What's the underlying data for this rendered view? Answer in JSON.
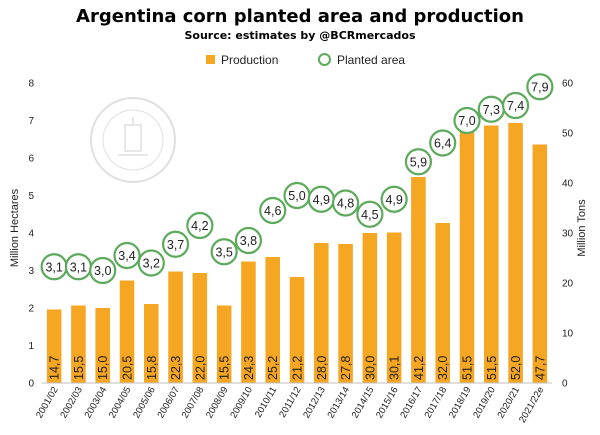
{
  "chart_data": {
    "type": "bar",
    "title": "Argentina corn planted area and production",
    "subtitle": "Source: estimates by @BCRmercados",
    "categories": [
      "2001/02",
      "2002/03",
      "2003/04",
      "2004/05",
      "2005/06",
      "2006/07",
      "2007/08",
      "2008/09",
      "2009/10",
      "2010/11",
      "2011/12",
      "2012/13",
      "2013/14",
      "2014/15",
      "2015/16",
      "2016/17",
      "2017/18",
      "2018/19",
      "2019/20",
      "2020/21",
      "2021/22e"
    ],
    "series": [
      {
        "name": "Production",
        "kind": "bar",
        "axis": "right",
        "color": "#F5A623",
        "values": [
          14.7,
          15.5,
          15.0,
          20.5,
          15.8,
          22.3,
          22.0,
          15.5,
          24.3,
          25.2,
          21.2,
          28.0,
          27.8,
          30.0,
          30.1,
          41.2,
          32.0,
          51.5,
          51.5,
          52.0,
          47.7
        ],
        "labels": [
          "14,7",
          "15,5",
          "15,0",
          "20,5",
          "15,8",
          "22,3",
          "22,0",
          "15,5",
          "24,3",
          "25,2",
          "21,2",
          "28,0",
          "27,8",
          "30,0",
          "30,1",
          "41,2",
          "32,0",
          "51,5",
          "51,5",
          "52,0",
          "47,7"
        ]
      },
      {
        "name": "Planted area",
        "kind": "circle-marker",
        "axis": "left",
        "color": "#5DAA5D",
        "values": [
          3.1,
          3.1,
          3.0,
          3.4,
          3.2,
          3.7,
          4.2,
          3.5,
          3.8,
          4.6,
          5.0,
          4.9,
          4.8,
          4.5,
          4.9,
          5.9,
          6.4,
          7.0,
          7.3,
          7.4,
          7.9
        ],
        "labels": [
          "3,1",
          "3,1",
          "3,0",
          "3,4",
          "3,2",
          "3,7",
          "4,2",
          "3,5",
          "3,8",
          "4,6",
          "5,0",
          "4,9",
          "4,8",
          "4,5",
          "4,9",
          "5,9",
          "6,4",
          "7,0",
          "7,3",
          "7,4",
          "7,9"
        ]
      }
    ],
    "ylabel_left": "Million Hectares",
    "ylabel_right": "Million Tons",
    "ylim_left": [
      0,
      8
    ],
    "ylim_right": [
      0,
      60
    ],
    "yticks_left": [
      "0",
      "1",
      "2",
      "3",
      "4",
      "5",
      "6",
      "7",
      "8"
    ],
    "yticks_right": [
      "0",
      "10",
      "20",
      "30",
      "40",
      "50",
      "60"
    ],
    "grid": false,
    "legend_position": "top-center"
  },
  "colors": {
    "bar": "#F5A623",
    "marker": "#5DAA5D"
  }
}
